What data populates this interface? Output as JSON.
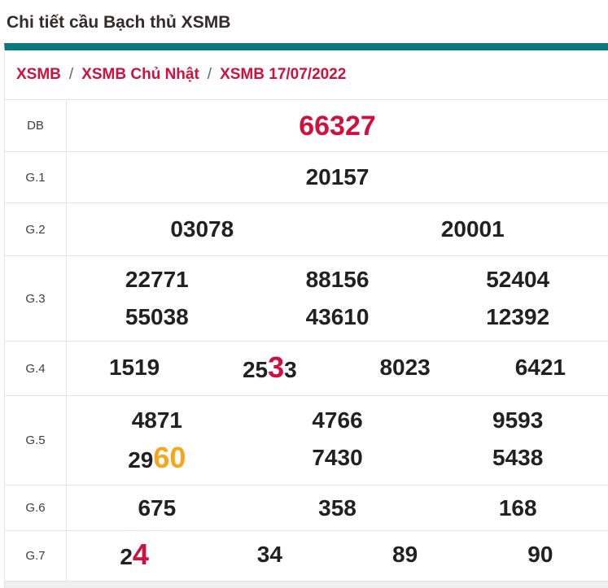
{
  "page": {
    "title": "Chi tiết cầu Bạch thủ XSMB"
  },
  "breadcrumb": {
    "items": [
      "XSMB",
      "XSMB Chủ Nhật",
      "XSMB 17/07/2022"
    ],
    "separator": "/"
  },
  "colors": {
    "accent_teal": "#0b787e",
    "crimson": "#d0113d",
    "orange": "#f7a51b",
    "number": "#212121",
    "border": "#e4e4e4"
  },
  "results_table": {
    "rows": [
      {
        "label": "DB",
        "class": "db",
        "lines": [
          [
            [
              {
                "t": "66327"
              }
            ]
          ]
        ]
      },
      {
        "label": "G.1",
        "lines": [
          [
            [
              {
                "t": "20157"
              }
            ]
          ]
        ]
      },
      {
        "label": "G.2",
        "lines": [
          [
            [
              {
                "t": "03078"
              }
            ],
            [
              {
                "t": "20001"
              }
            ]
          ]
        ]
      },
      {
        "label": "G.3",
        "lines": [
          [
            [
              {
                "t": "22771"
              }
            ],
            [
              {
                "t": "88156"
              }
            ],
            [
              {
                "t": "52404"
              }
            ]
          ],
          [
            [
              {
                "t": "55038"
              }
            ],
            [
              {
                "t": "43610"
              }
            ],
            [
              {
                "t": "12392"
              }
            ]
          ]
        ]
      },
      {
        "label": "G.4",
        "lines": [
          [
            [
              {
                "t": "1519"
              }
            ],
            [
              {
                "t": "25"
              },
              {
                "t": "3",
                "hl": "red"
              },
              {
                "t": "3"
              }
            ],
            [
              {
                "t": "8023"
              }
            ],
            [
              {
                "t": "6421"
              }
            ]
          ]
        ]
      },
      {
        "label": "G.5",
        "lines": [
          [
            [
              {
                "t": "4871"
              }
            ],
            [
              {
                "t": "4766"
              }
            ],
            [
              {
                "t": "9593"
              }
            ]
          ],
          [
            [
              {
                "t": "29"
              },
              {
                "t": "60",
                "hl": "orange"
              }
            ],
            [
              {
                "t": "7430"
              }
            ],
            [
              {
                "t": "5438"
              }
            ]
          ]
        ]
      },
      {
        "label": "G.6",
        "lines": [
          [
            [
              {
                "t": "675"
              }
            ],
            [
              {
                "t": "358"
              }
            ],
            [
              {
                "t": "168"
              }
            ]
          ]
        ]
      },
      {
        "label": "G.7",
        "lines": [
          [
            [
              {
                "t": "2"
              },
              {
                "t": "4",
                "hl": "red"
              }
            ],
            [
              {
                "t": "34"
              }
            ],
            [
              {
                "t": "89"
              }
            ],
            [
              {
                "t": "90"
              }
            ]
          ]
        ]
      }
    ]
  }
}
